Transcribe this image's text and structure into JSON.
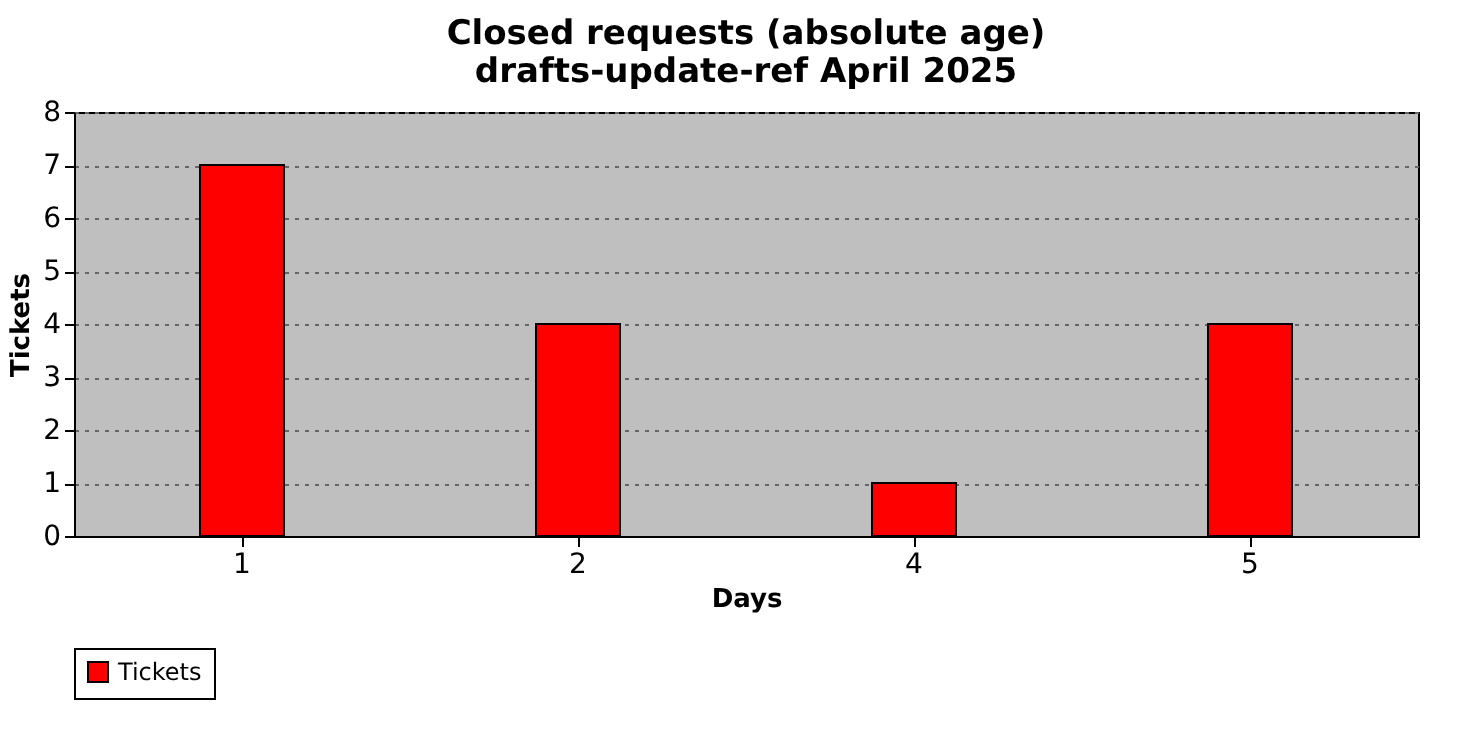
{
  "chart_data": {
    "type": "bar",
    "title": "Closed requests (absolute age)\ndrafts-update-ref April 2025",
    "xlabel": "Days",
    "ylabel": "Tickets",
    "categories": [
      "1",
      "2",
      "4",
      "5"
    ],
    "series": [
      {
        "name": "Tickets",
        "color": "#ff0000",
        "values": [
          7,
          4,
          1,
          4
        ]
      }
    ],
    "ylim": [
      0,
      8
    ],
    "yticks": [
      0,
      1,
      2,
      3,
      4,
      5,
      6,
      7,
      8
    ],
    "grid": "y",
    "legend": "bottom"
  }
}
